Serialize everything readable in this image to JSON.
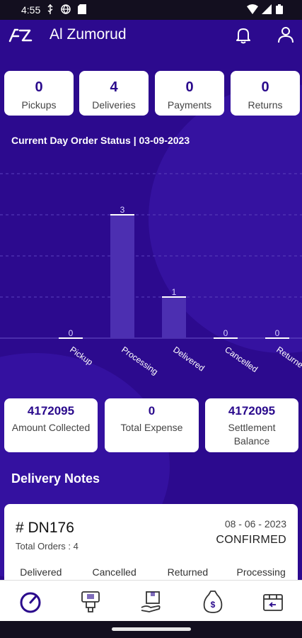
{
  "status_bar": {
    "time": "4:55",
    "icons": [
      "usb-icon",
      "vpn-globe-icon",
      "sd-card-icon",
      "wifi-icon",
      "signal-icon",
      "battery-icon"
    ]
  },
  "header": {
    "app_title": "Al Zumorud",
    "icons": [
      "app-logo-icon",
      "bell-icon",
      "user-icon"
    ]
  },
  "summary": [
    {
      "count": "0",
      "label": "Pickups"
    },
    {
      "count": "4",
      "label": "Deliveries"
    },
    {
      "count": "0",
      "label": "Payments"
    },
    {
      "count": "0",
      "label": "Returns"
    }
  ],
  "order_status_title": "Current Day Order Status | 03-09-2023",
  "chart_data": {
    "type": "bar",
    "categories": [
      "Pickup",
      "Processing",
      "Delivered",
      "Cancelled",
      "Returned"
    ],
    "values": [
      0,
      3,
      1,
      0,
      0
    ],
    "data_labels": [
      "0",
      "3",
      "1",
      "0",
      "0"
    ],
    "tick_labels": [
      "Pickup",
      "Processing",
      "Delivered",
      "Cancelled",
      "Returne"
    ],
    "ylim": [
      0,
      4
    ],
    "grid": true,
    "title": "",
    "xlabel": "",
    "ylabel": ""
  },
  "financials": [
    {
      "value": "4172095",
      "label": "Amount Collected"
    },
    {
      "value": "0",
      "label": "Total Expense"
    },
    {
      "value": "4172095",
      "label": "Settlement Balance"
    }
  ],
  "delivery_notes": {
    "title": "Delivery Notes",
    "card": {
      "id": "# DN176",
      "total_orders": "Total Orders : 4",
      "date": "08 - 06 - 2023",
      "status": "CONFIRMED",
      "columns": [
        "Delivered",
        "Cancelled",
        "Returned",
        "Processing"
      ]
    }
  },
  "bottom_nav": [
    "dashboard-icon",
    "pickup-icon",
    "delivery-icon",
    "payments-icon",
    "returns-icon"
  ],
  "colors": {
    "background": "#2c0a8e",
    "accent": "#2a0a8c",
    "card": "#ffffff",
    "bar": "#4c2fb1"
  }
}
